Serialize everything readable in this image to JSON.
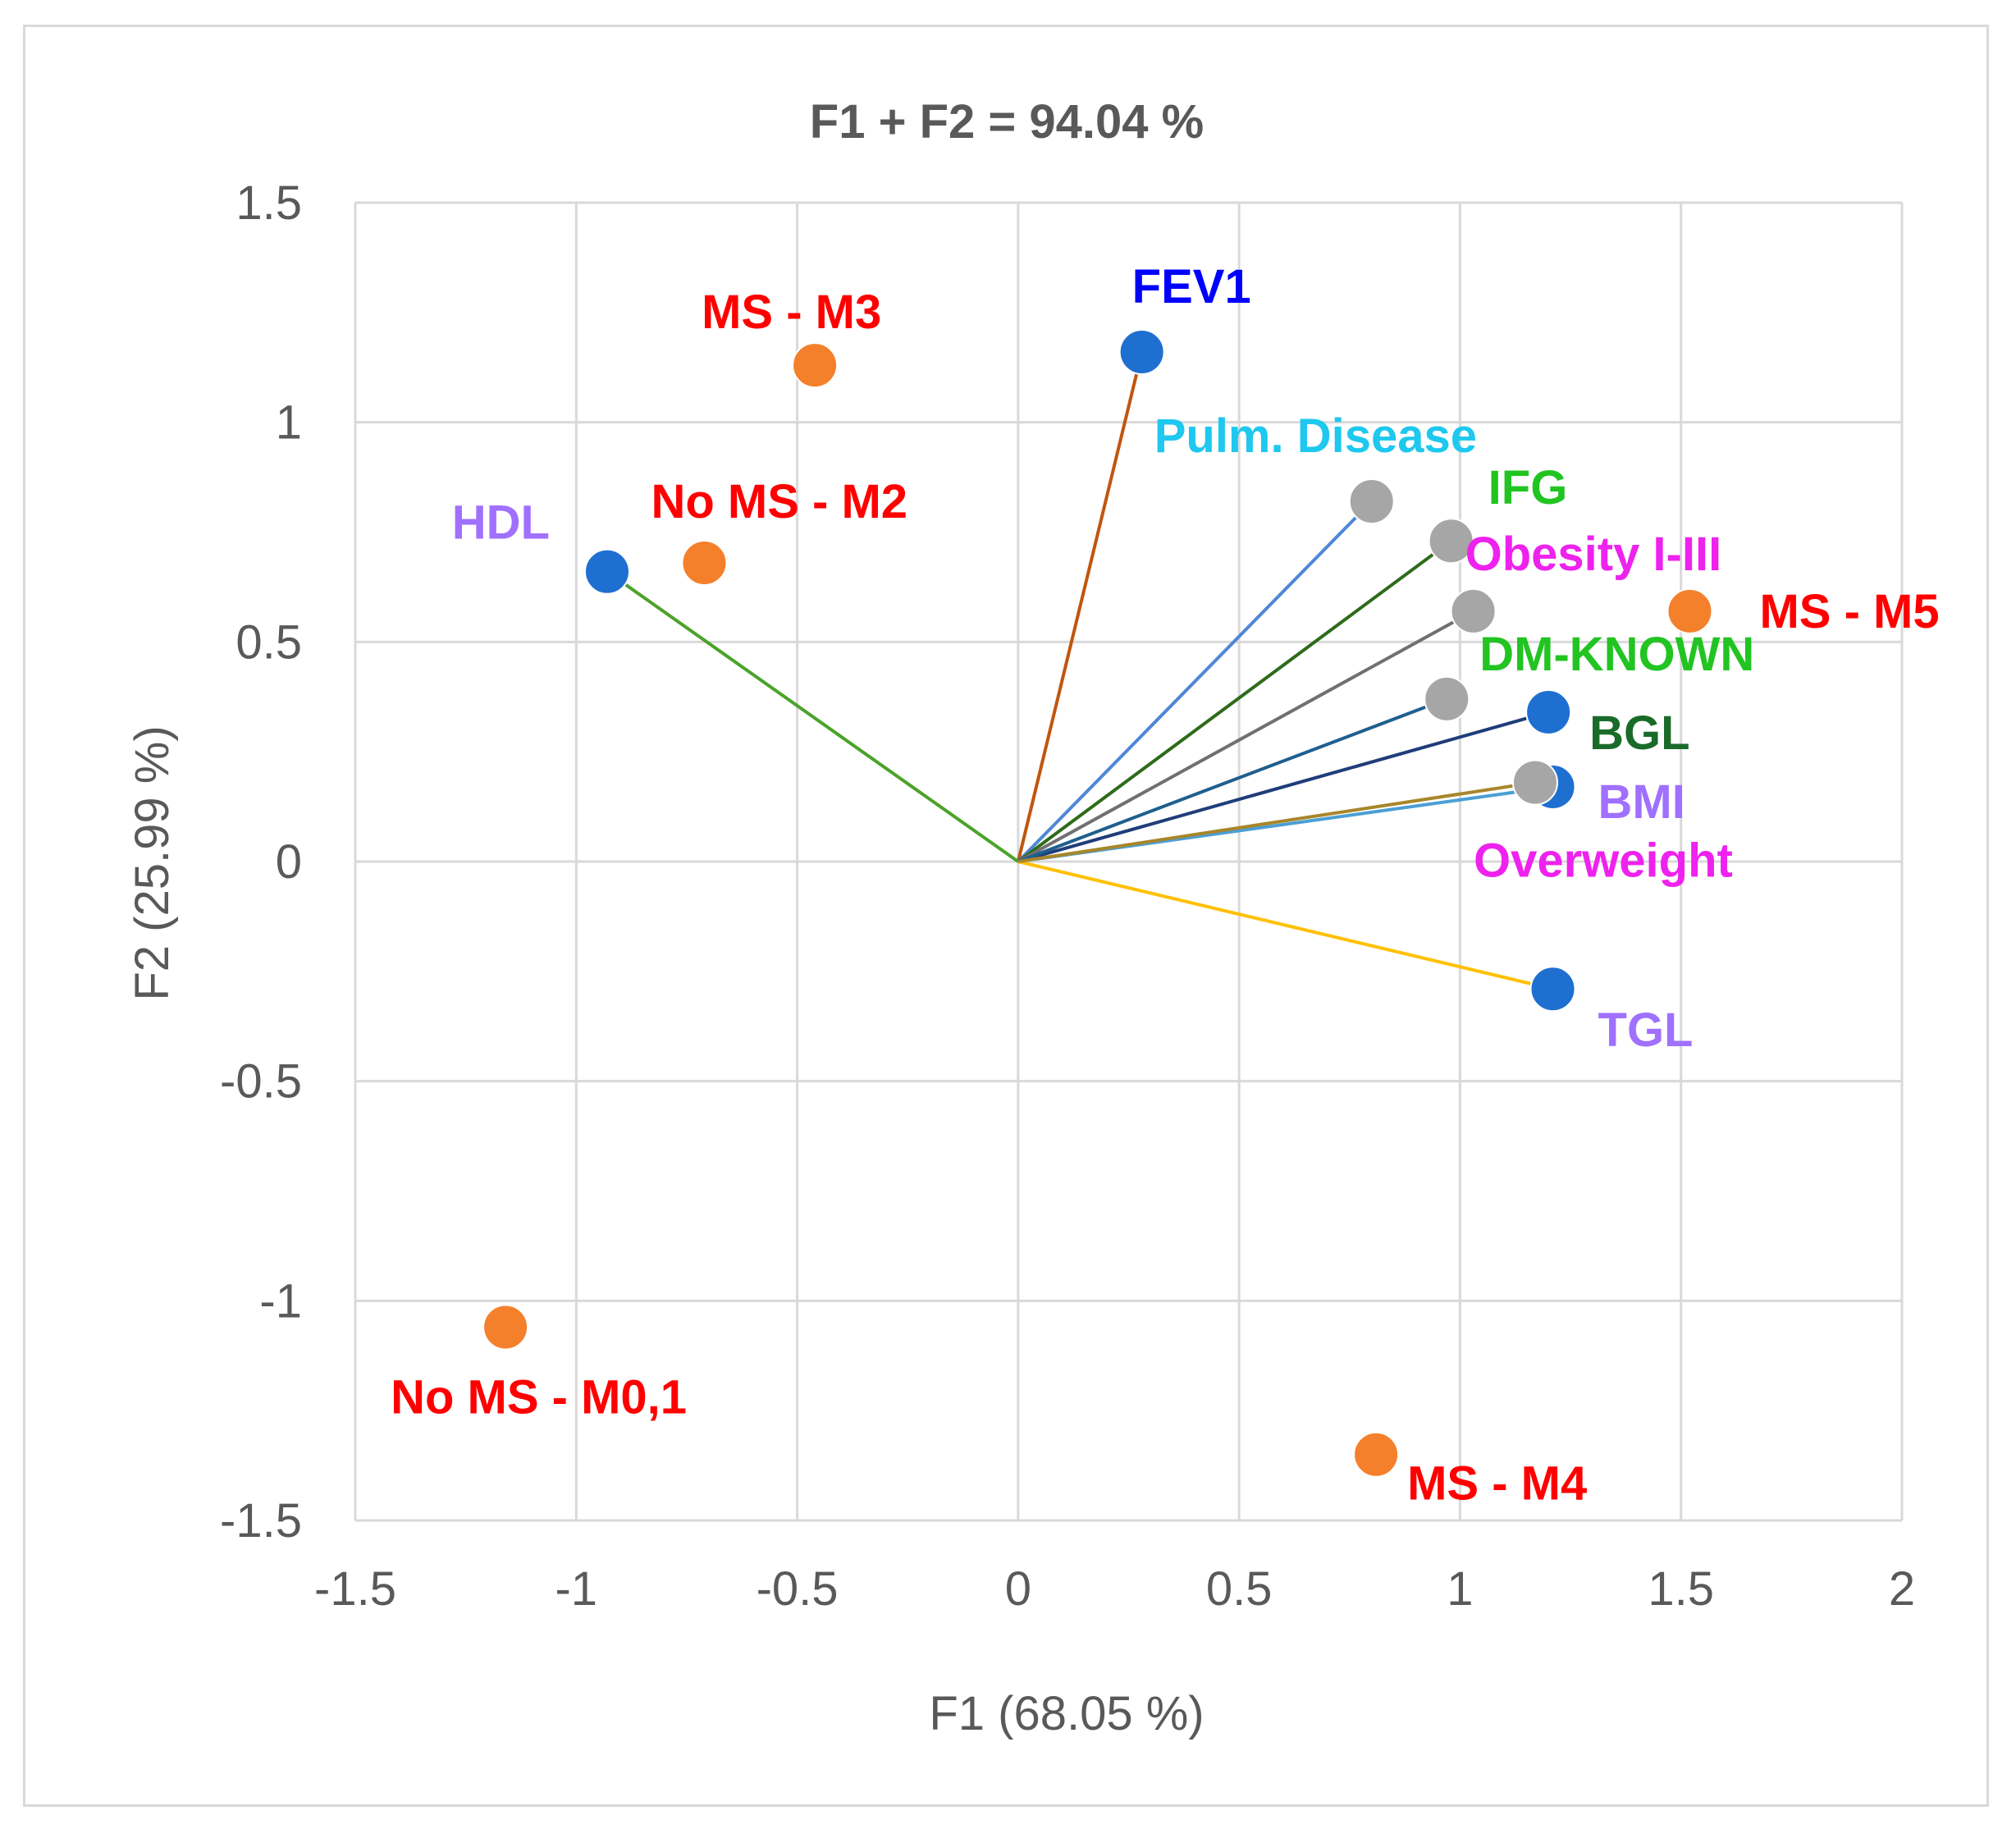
{
  "chart_data": {
    "type": "scatter",
    "title": "F1 + F2 = 94.04 %",
    "xlabel": "F1 (68.05 %)",
    "ylabel": "F2 (25.99 %)",
    "xlim": [
      -1.5,
      2
    ],
    "ylim": [
      -1.5,
      1.5
    ],
    "xticks": [
      -1.5,
      -1,
      -0.5,
      0,
      0.5,
      1,
      1.5,
      2
    ],
    "yticks": [
      -1.5,
      -1,
      -0.5,
      0,
      0.5,
      1,
      1.5
    ],
    "xtick_labels": [
      "-1.5",
      "-1",
      "-0.5",
      "0",
      "0.5",
      "1",
      "1.5",
      "2"
    ],
    "ytick_labels": [
      "-1.5",
      "-1",
      "-0.5",
      "0",
      "0.5",
      "1",
      "1.5"
    ],
    "grid": true,
    "series": [
      {
        "name": "Observations",
        "marker_color": "#f4802b",
        "points": [
          {
            "label": "MS - M3",
            "x": -0.46,
            "y": 1.13,
            "label_color": "#ff0000",
            "label_pos": "above"
          },
          {
            "label": "No MS - M2",
            "x": -0.71,
            "y": 0.68,
            "label_color": "#ff0000",
            "label_pos": "above-right"
          },
          {
            "label": "MS - M5",
            "x": 1.52,
            "y": 0.57,
            "label_color": "#ff0000",
            "label_pos": "right"
          },
          {
            "label": "No MS - M0,1",
            "x": -1.16,
            "y": -1.06,
            "label_color": "#ff0000",
            "label_pos": "below-right"
          },
          {
            "label": "MS - M4",
            "x": 0.81,
            "y": -1.35,
            "label_color": "#ff0000",
            "label_pos": "below-right"
          }
        ]
      },
      {
        "name": "Active variables",
        "marker_color": "#1f6fd1",
        "points": [
          {
            "label": "FEV1",
            "x": 0.28,
            "y": 1.16,
            "label_color": "#0000ff",
            "label_pos": "above-right",
            "line_color": "#c0560f"
          },
          {
            "label": "HDL",
            "x": -0.93,
            "y": 0.66,
            "label_color": "#a070ff",
            "label_pos": "left",
            "line_color": "#4ba32a"
          },
          {
            "label": "BGL",
            "x": 1.2,
            "y": 0.34,
            "label_color": "#1a6b2a",
            "label_pos": "below-right",
            "line_color": "#1f3d7a"
          },
          {
            "label": "BMI",
            "x": 1.21,
            "y": 0.17,
            "label_color": "#a070ff",
            "label_pos": "right",
            "line_color": "#4a9fd4"
          },
          {
            "label": "TGL",
            "x": 1.21,
            "y": -0.29,
            "label_color": "#a070ff",
            "label_pos": "below-right",
            "line_color": "#ffc000"
          }
        ]
      },
      {
        "name": "Supplementary variables",
        "marker_color": "#a6a6a6",
        "points": [
          {
            "label": "Pulm. Disease",
            "x": 0.8,
            "y": 0.82,
            "label_color": "#1ec8ee",
            "label_pos": "above",
            "line_color": "#4f87d6"
          },
          {
            "label": "IFG",
            "x": 0.98,
            "y": 0.73,
            "label_color": "#22c422",
            "label_pos": "above-right",
            "line_color": "#2e6b1a"
          },
          {
            "label": "Obesity I-III",
            "x": 1.03,
            "y": 0.57,
            "label_color": "#ee22ee",
            "label_pos": "above-right",
            "line_color": "#707070"
          },
          {
            "label": "DM-KNOWN",
            "x": 0.97,
            "y": 0.37,
            "label_color": "#22c422",
            "label_pos": "above-right",
            "line_color": "#1f5f8f"
          },
          {
            "label": "Overweight",
            "x": 1.17,
            "y": 0.18,
            "label_color": "#ee22ee",
            "label_pos": "below-right",
            "line_color": "#a8862a"
          }
        ]
      }
    ]
  }
}
